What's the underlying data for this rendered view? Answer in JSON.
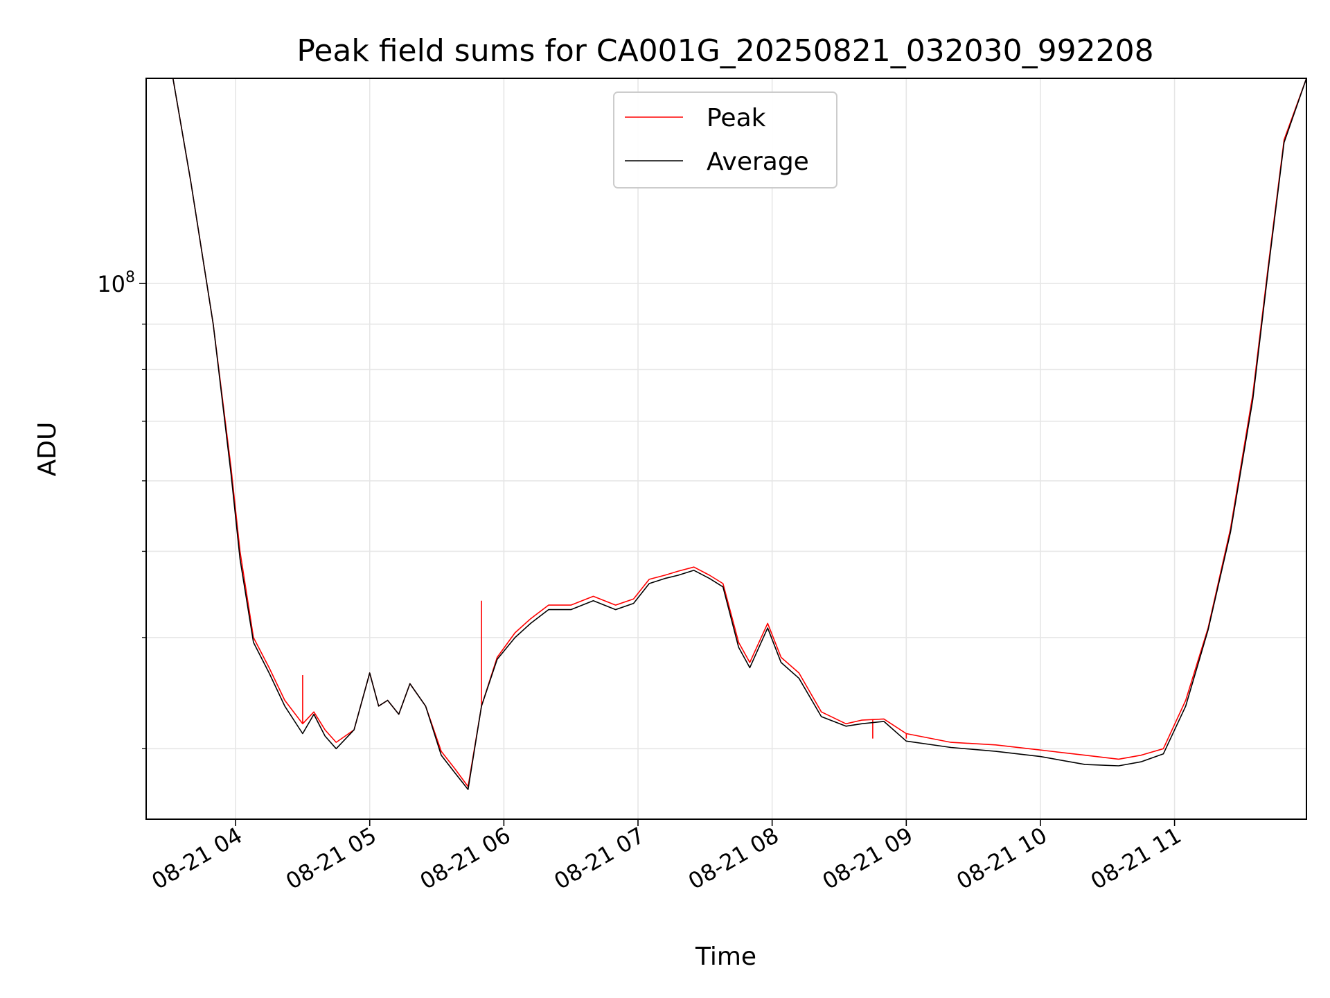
{
  "chart_data": {
    "type": "line",
    "title": "Peak field sums for CA001G_20250821_032030_992208",
    "xlabel": "Time",
    "ylabel": "ADU",
    "yscale": "log",
    "grid": true,
    "legend_position": "top-center",
    "xlim": [
      "2025-08-21T03:20",
      "2025-08-21T11:59"
    ],
    "ylim": [
      25000000,
      170000000
    ],
    "x_ticks": [
      "08-21 04",
      "08-21 05",
      "08-21 06",
      "08-21 07",
      "08-21 08",
      "08-21 09",
      "08-21 10",
      "08-21 11"
    ],
    "x_tick_times": [
      "2025-08-21T04:00",
      "2025-08-21T05:00",
      "2025-08-21T06:00",
      "2025-08-21T07:00",
      "2025-08-21T08:00",
      "2025-08-21T09:00",
      "2025-08-21T10:00",
      "2025-08-21T11:00"
    ],
    "y_ticks": [
      {
        "label_base": "10",
        "label_exp": "8",
        "value": 100000000
      }
    ],
    "y_minor_ticks": [
      30000000,
      40000000,
      50000000,
      60000000,
      70000000,
      80000000,
      90000000
    ],
    "series": [
      {
        "name": "Peak",
        "color": "#ff0000",
        "x": [
          "2025-08-21T03:20",
          "2025-08-21T03:32",
          "2025-08-21T03:40",
          "2025-08-21T03:50",
          "2025-08-21T03:58",
          "2025-08-21T04:02",
          "2025-08-21T04:08",
          "2025-08-21T04:15",
          "2025-08-21T04:22",
          "2025-08-21T04:30",
          "2025-08-21T04:35",
          "2025-08-21T04:40",
          "2025-08-21T04:45",
          "2025-08-21T04:53",
          "2025-08-21T05:00",
          "2025-08-21T05:04",
          "2025-08-21T05:08",
          "2025-08-21T05:13",
          "2025-08-21T05:18",
          "2025-08-21T05:25",
          "2025-08-21T05:32",
          "2025-08-21T05:38",
          "2025-08-21T05:44",
          "2025-08-21T05:50",
          "2025-08-21T05:57",
          "2025-08-21T06:05",
          "2025-08-21T06:12",
          "2025-08-21T06:20",
          "2025-08-21T06:30",
          "2025-08-21T06:40",
          "2025-08-21T06:50",
          "2025-08-21T06:58",
          "2025-08-21T07:05",
          "2025-08-21T07:12",
          "2025-08-21T07:18",
          "2025-08-21T07:25",
          "2025-08-21T07:32",
          "2025-08-21T07:38",
          "2025-08-21T07:45",
          "2025-08-21T07:50",
          "2025-08-21T07:58",
          "2025-08-21T08:04",
          "2025-08-21T08:12",
          "2025-08-21T08:22",
          "2025-08-21T08:33",
          "2025-08-21T08:40",
          "2025-08-21T08:50",
          "2025-08-21T09:00",
          "2025-08-21T09:20",
          "2025-08-21T09:40",
          "2025-08-21T10:00",
          "2025-08-21T10:20",
          "2025-08-21T10:35",
          "2025-08-21T10:45",
          "2025-08-21T10:55",
          "2025-08-21T11:05",
          "2025-08-21T11:15",
          "2025-08-21T11:25",
          "2025-08-21T11:35",
          "2025-08-21T11:42",
          "2025-08-21T11:49",
          "2025-08-21T11:59"
        ],
        "values": [
          170000000,
          170000000,
          130000000,
          90000000,
          62000000,
          50000000,
          40000000,
          37000000,
          34000000,
          32000000,
          33000000,
          31500000,
          30500000,
          31500000,
          36500000,
          33500000,
          34000000,
          32800000,
          35500000,
          33500000,
          29800000,
          28500000,
          27200000,
          33500000,
          38000000,
          40500000,
          42000000,
          43500000,
          43500000,
          44500000,
          43500000,
          44200000,
          46500000,
          47000000,
          47500000,
          48000000,
          47000000,
          46000000,
          39500000,
          37500000,
          41500000,
          38000000,
          36500000,
          33000000,
          32000000,
          32300000,
          32400000,
          31200000,
          30500000,
          30300000,
          29900000,
          29500000,
          29200000,
          29500000,
          30000000,
          34000000,
          41000000,
          53000000,
          75000000,
          105000000,
          145000000,
          170000000
        ],
        "spikes": [
          {
            "x": "2025-08-21T04:30",
            "value": 36300000
          },
          {
            "x": "2025-08-21T05:50",
            "value": 44000000
          },
          {
            "x": "2025-08-21T08:45",
            "value": 30800000
          },
          {
            "x": "2025-08-21T09:00",
            "value": 30800000
          }
        ]
      },
      {
        "name": "Average",
        "color": "#000000",
        "x": [
          "2025-08-21T03:20",
          "2025-08-21T03:32",
          "2025-08-21T03:40",
          "2025-08-21T03:50",
          "2025-08-21T03:58",
          "2025-08-21T04:02",
          "2025-08-21T04:08",
          "2025-08-21T04:15",
          "2025-08-21T04:22",
          "2025-08-21T04:30",
          "2025-08-21T04:35",
          "2025-08-21T04:40",
          "2025-08-21T04:45",
          "2025-08-21T04:53",
          "2025-08-21T05:00",
          "2025-08-21T05:04",
          "2025-08-21T05:08",
          "2025-08-21T05:13",
          "2025-08-21T05:18",
          "2025-08-21T05:25",
          "2025-08-21T05:32",
          "2025-08-21T05:38",
          "2025-08-21T05:44",
          "2025-08-21T05:50",
          "2025-08-21T05:57",
          "2025-08-21T06:05",
          "2025-08-21T06:12",
          "2025-08-21T06:20",
          "2025-08-21T06:30",
          "2025-08-21T06:40",
          "2025-08-21T06:50",
          "2025-08-21T06:58",
          "2025-08-21T07:05",
          "2025-08-21T07:12",
          "2025-08-21T07:18",
          "2025-08-21T07:25",
          "2025-08-21T07:32",
          "2025-08-21T07:38",
          "2025-08-21T07:45",
          "2025-08-21T07:50",
          "2025-08-21T07:58",
          "2025-08-21T08:04",
          "2025-08-21T08:12",
          "2025-08-21T08:22",
          "2025-08-21T08:33",
          "2025-08-21T08:40",
          "2025-08-21T08:50",
          "2025-08-21T09:00",
          "2025-08-21T09:20",
          "2025-08-21T09:40",
          "2025-08-21T10:00",
          "2025-08-21T10:20",
          "2025-08-21T10:35",
          "2025-08-21T10:45",
          "2025-08-21T10:55",
          "2025-08-21T11:05",
          "2025-08-21T11:15",
          "2025-08-21T11:25",
          "2025-08-21T11:35",
          "2025-08-21T11:42",
          "2025-08-21T11:49",
          "2025-08-21T11:59"
        ],
        "values": [
          170000000,
          170000000,
          130000000,
          90000000,
          61000000,
          49000000,
          39500000,
          36500000,
          33500000,
          31200000,
          32800000,
          31000000,
          30000000,
          31500000,
          36500000,
          33500000,
          34000000,
          32800000,
          35500000,
          33500000,
          29500000,
          28200000,
          27000000,
          33500000,
          37800000,
          40000000,
          41500000,
          43000000,
          43000000,
          44000000,
          43000000,
          43700000,
          46000000,
          46600000,
          47000000,
          47600000,
          46600000,
          45600000,
          39000000,
          37000000,
          41000000,
          37500000,
          36000000,
          32600000,
          31800000,
          32000000,
          32200000,
          30600000,
          30100000,
          29800000,
          29400000,
          28800000,
          28700000,
          29000000,
          29600000,
          33500000,
          40800000,
          52500000,
          74000000,
          104000000,
          144000000,
          170000000
        ]
      }
    ],
    "legend": [
      {
        "label": "Peak",
        "color": "#ff0000"
      },
      {
        "label": "Average",
        "color": "#000000"
      }
    ]
  }
}
